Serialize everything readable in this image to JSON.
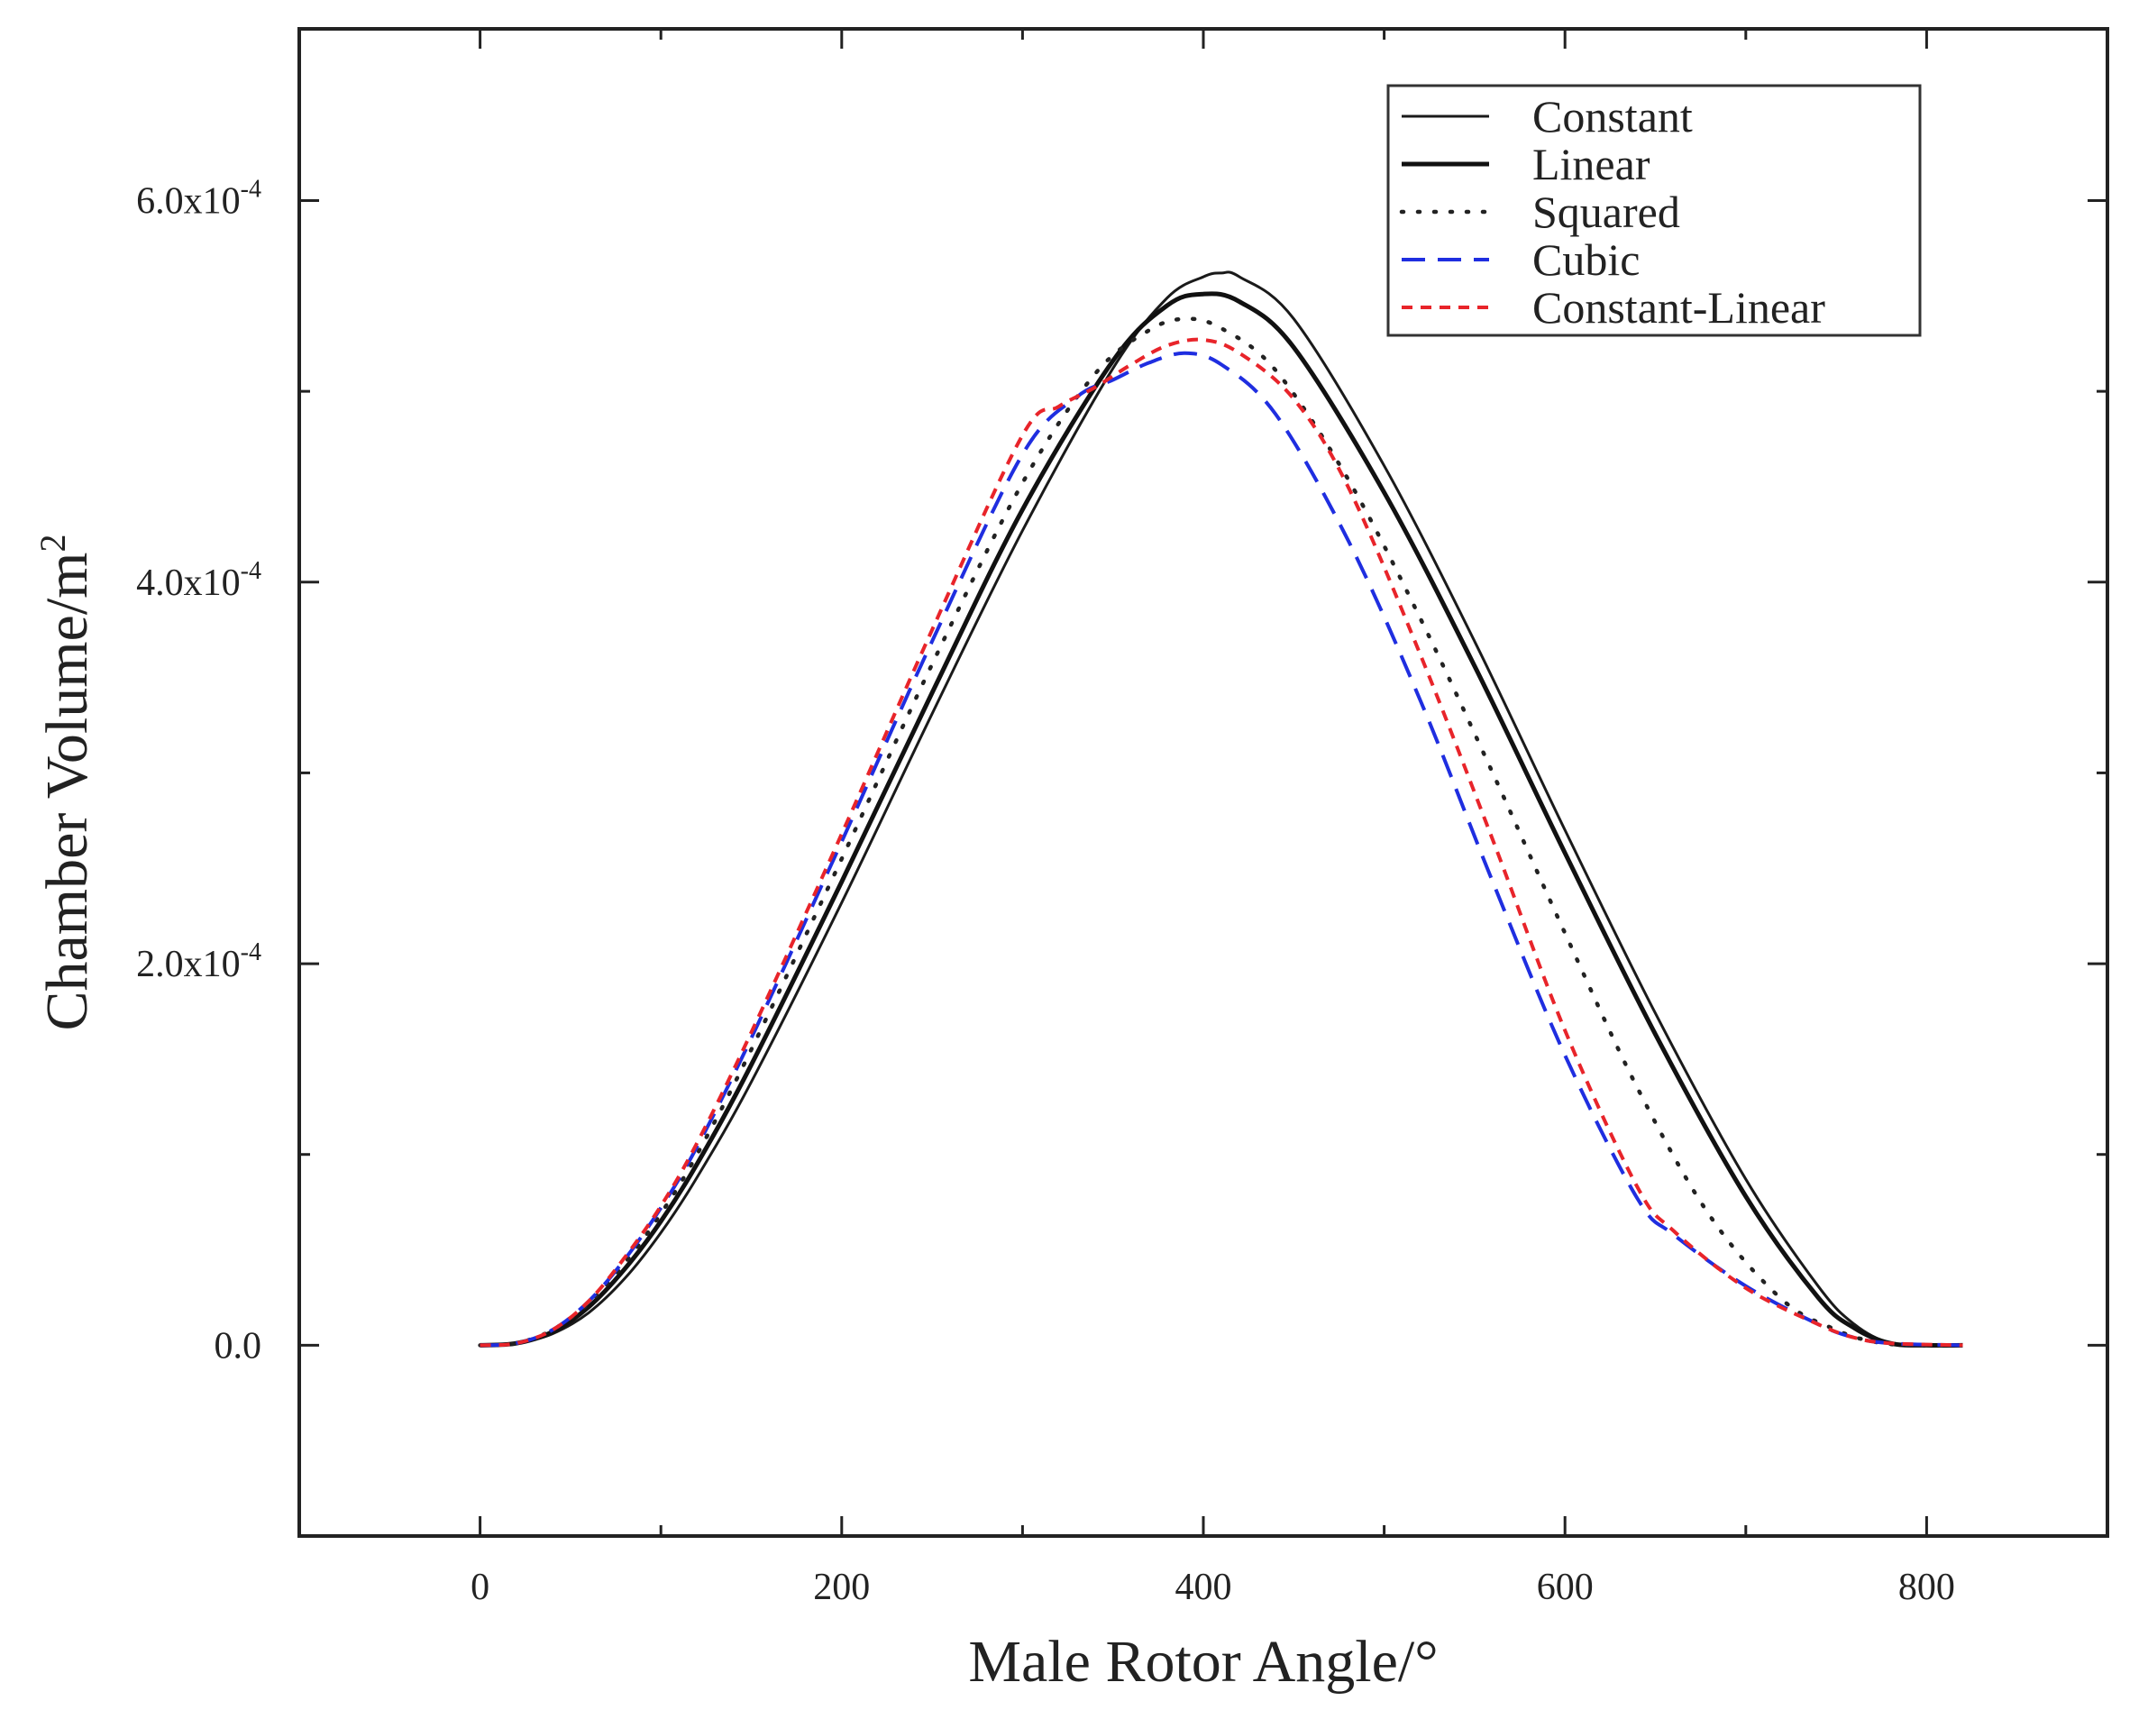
{
  "chart_data": {
    "type": "line",
    "xlabel": "Male Rotor Angle/°",
    "ylabel_base": "Chamber Volume/m",
    "ylabel_sup": "2",
    "xlim": [
      -100,
      900
    ],
    "ylim": [
      -0.0001,
      0.00069
    ],
    "x_ticks": [
      0,
      200,
      400,
      600,
      800
    ],
    "x_tick_labels": [
      "0",
      "200",
      "400",
      "600",
      "800"
    ],
    "y_ticks": [
      0,
      0.0002,
      0.0004,
      0.0006
    ],
    "y_tick_labels": [
      {
        "base": "0.0",
        "exp": ""
      },
      {
        "base": "2.0x10",
        "exp": "-4"
      },
      {
        "base": "4.0x10",
        "exp": "-4"
      },
      {
        "base": "6.0x10",
        "exp": "-4"
      }
    ],
    "grid": false,
    "legend_position": "top-right",
    "series": [
      {
        "name": "Constant",
        "style": "solid-thin",
        "color": "#1a1a1a",
        "x": [
          0,
          20,
          40,
          60,
          80,
          100,
          120,
          150,
          200,
          250,
          300,
          350,
          380,
          400,
          410,
          420,
          450,
          500,
          550,
          600,
          650,
          700,
          740,
          760,
          780,
          800,
          820
        ],
        "y": [
          0,
          1e-06,
          6e-06,
          1.7e-05,
          3.5e-05,
          5.9e-05,
          8.8e-05,
          0.000138,
          0.000232,
          0.000331,
          0.000427,
          0.000512,
          0.000549,
          0.00056,
          0.000562,
          0.00056,
          0.000538,
          0.000461,
          0.000369,
          0.00027,
          0.000174,
          8.7e-05,
          3.1e-05,
          1.1e-05,
          1e-06,
          0,
          0
        ]
      },
      {
        "name": "Linear",
        "style": "solid-thick",
        "color": "#111111",
        "x": [
          0,
          20,
          40,
          60,
          80,
          100,
          120,
          150,
          200,
          250,
          300,
          350,
          380,
          400,
          420,
          450,
          500,
          550,
          600,
          650,
          700,
          740,
          760,
          780,
          800,
          820
        ],
        "y": [
          0,
          1e-06,
          7e-06,
          2e-05,
          4e-05,
          6.5e-05,
          9.5e-05,
          0.000147,
          0.000243,
          0.000342,
          0.000438,
          0.000516,
          0.000545,
          0.000551,
          0.000547,
          0.000523,
          0.000447,
          0.000356,
          0.000258,
          0.000163,
          7.8e-05,
          2.5e-05,
          9e-06,
          1e-06,
          0,
          0
        ]
      },
      {
        "name": "Squared",
        "style": "dotted",
        "color": "#222222",
        "x": [
          0,
          20,
          40,
          60,
          80,
          100,
          120,
          150,
          200,
          250,
          300,
          340,
          370,
          390,
          410,
          440,
          480,
          520,
          560,
          600,
          640,
          680,
          720,
          750,
          770,
          790,
          820
        ],
        "y": [
          0,
          1e-06,
          8e-06,
          2.2e-05,
          4.3e-05,
          6.9e-05,
          0.0001,
          0.000155,
          0.000255,
          0.000357,
          0.000452,
          0.000509,
          0.000532,
          0.000538,
          0.000533,
          0.000511,
          0.000454,
          0.000381,
          0.0003,
          0.000216,
          0.000135,
          6.8e-05,
          2.4e-05,
          8e-06,
          2e-06,
          0,
          0
        ]
      },
      {
        "name": "Cubic",
        "style": "dashed",
        "color": "#1f2ee0",
        "x": [
          0,
          20,
          40,
          60,
          80,
          100,
          120,
          150,
          200,
          250,
          300,
          330,
          350,
          370,
          390,
          410,
          440,
          480,
          520,
          560,
          600,
          640,
          660,
          700,
          740,
          760,
          780,
          820
        ],
        "y": [
          0,
          1e-06,
          8e-06,
          2.3e-05,
          4.5e-05,
          7.2e-05,
          0.000104,
          0.000161,
          0.000264,
          0.000369,
          0.000467,
          0.000497,
          0.000506,
          0.000515,
          0.00052,
          0.000514,
          0.000488,
          0.000422,
          0.000338,
          0.000243,
          0.000152,
          7.7e-05,
          5.8e-05,
          3.1e-05,
          1.1e-05,
          4e-06,
          1e-06,
          0
        ]
      },
      {
        "name": "Constant-Linear",
        "style": "short-dashed",
        "color": "#e8242a",
        "x": [
          0,
          20,
          40,
          60,
          80,
          100,
          120,
          150,
          200,
          250,
          300,
          320,
          340,
          360,
          380,
          400,
          420,
          450,
          480,
          520,
          560,
          600,
          640,
          660,
          700,
          740,
          760,
          780,
          820
        ],
        "y": [
          0,
          1e-06,
          8e-06,
          2.3e-05,
          4.6e-05,
          7.3e-05,
          0.000106,
          0.000164,
          0.000268,
          0.000375,
          0.000477,
          0.000492,
          0.000502,
          0.000514,
          0.000524,
          0.000527,
          0.00052,
          0.000496,
          0.00045,
          0.000362,
          0.000265,
          0.000165,
          8.3e-05,
          6e-05,
          3e-05,
          1.1e-05,
          4e-06,
          1e-06,
          0
        ]
      }
    ]
  }
}
